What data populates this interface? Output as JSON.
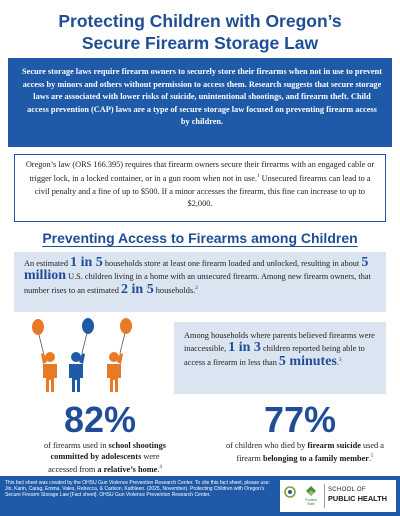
{
  "title": {
    "line1": "Protecting Children with Oregon’s",
    "line2": "Secure Firearm Storage Law"
  },
  "intro": {
    "text": "Secure storage laws require firearm owners to securely store their firearms when not in use to prevent access by minors and others without permission to access them. Research suggests that secure storage laws are associated with lower risks of suicide, unintentional shootings, and firearm theft. Child access prevention (CAP) laws are a type of secure storage law focused on preventing firearm access by children."
  },
  "law": {
    "p1": "Oregon’s law (ORS 166.395) requires that firearm owners secure their firearms with an engaged cable or trigger lock, in a locked container, or in a gun room when not in use.",
    "p1_ref": "1",
    "p2": "Unsecured firearms can lead to a civil penalty and a fine of up to $500. If a minor accesses the firearm, this fine can increase to up to $2,000."
  },
  "section_heading": "Preventing Access to Firearms among Children",
  "stat1": {
    "pre": "An estimated ",
    "big1": "1 in 5",
    "mid1": " households store at least one firearm loaded and unlocked, resulting in about ",
    "big2": "5 million",
    "mid2": " U.S. children living in a home with an unsecured firearm. Among new firearm owners, that number rises to an estimated ",
    "big3": "2 in 5",
    "post": " households.",
    "ref": "2"
  },
  "stat2": {
    "pre": "Among households where parents believed firearms were inaccessible, ",
    "big1": "1 in 3",
    "mid": " children reported being able to access a firearm in less than ",
    "big2": "5 minutes",
    "post": ".",
    "ref": "3"
  },
  "pct1": {
    "value": "82%",
    "pre": "of firearms used in ",
    "bold1": "school shootings committed by adolescents",
    "mid": " were accessed from ",
    "bold2": "a relative’s home",
    "post": ".",
    "ref": "4"
  },
  "pct2": {
    "value": "77%",
    "pre": "of children who died by ",
    "bold1": "firearm suicide",
    "mid": " used a firearm ",
    "bold2": "belonging to a family member",
    "post": ".",
    "ref": "5"
  },
  "footer": {
    "text": "This fact sheet was created by the OHSU Gun Violence Prevention Research Center. To cite this fact sheet, please use: Jin, Karin, Carag, Emma, Vales, Rebecca, & Carlson, Kathleen. (2025, November). Protecting Children with Oregon’s Secure Firearm Storage Law [Fact sheet]. OHSU Gun Violence Prevention Research Center.",
    "psu_line1": "Portland",
    "psu_line2": "State",
    "school_line1": "SCHOOL OF",
    "school_line2": "PUBLIC HEALTH"
  },
  "colors": {
    "brand_blue": "#1f5aa8",
    "heading_blue": "#1f4e96",
    "light_panel": "#dbe5f1",
    "figure_orange": "#e87a25",
    "figure_blue": "#1f5aa8"
  },
  "icons": [
    "child-figure-icon",
    "balloon-icon",
    "ohsu-logo-icon",
    "psu-logo-icon"
  ]
}
